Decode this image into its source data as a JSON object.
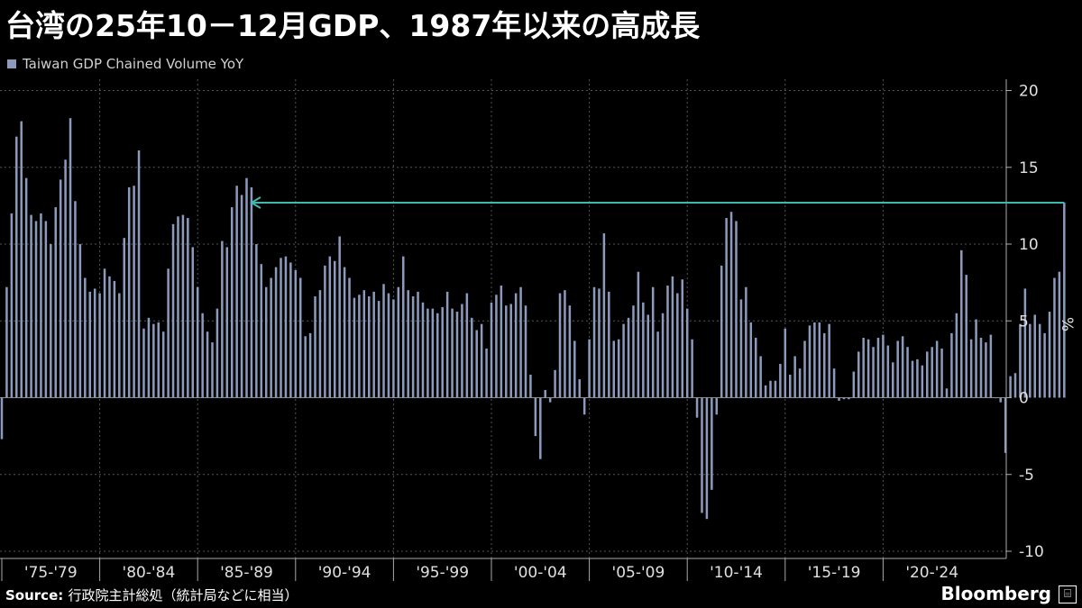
{
  "title": "台湾の25年10－12月GDP、1987年以来の高成長",
  "legend": {
    "label": "Taiwan GDP Chained Volume YoY",
    "color": "#8c9bbd"
  },
  "source": {
    "label": "Source:",
    "text": "行政院主計総処（統計局などに相当）"
  },
  "brand": {
    "name": "Bloomberg",
    "icon": "bloomberg-terminal-icon"
  },
  "colors": {
    "background": "#000000",
    "bar": "#8c9bbd",
    "arrow": "#3fb8b0",
    "grid": "#555555",
    "axis": "#aaaaaa"
  },
  "chart_data": {
    "type": "bar",
    "ylabel": "%",
    "ylim": [
      -11,
      20.5
    ],
    "yticks": [
      20,
      15,
      10,
      5,
      0,
      -5,
      -10
    ],
    "grid": true,
    "y_axis_side": "right",
    "period_labels": [
      "'75-'79",
      "'80-'84",
      "'85-'89",
      "'90-'94",
      "'95-'99",
      "'00-'04",
      "'05-'09",
      "'10-'14",
      "'15-'19",
      "'20-'24"
    ],
    "x_start": "1975 Q1",
    "x_end": "2025 Q4",
    "values": [
      -2.7,
      7.2,
      12.0,
      17.0,
      18.0,
      14.3,
      11.9,
      11.5,
      12.0,
      11.5,
      10.0,
      12.4,
      14.2,
      15.5,
      18.2,
      12.8,
      10.0,
      7.8,
      6.9,
      7.1,
      6.8,
      8.4,
      7.9,
      7.6,
      6.8,
      10.4,
      13.7,
      13.8,
      16.1,
      4.5,
      5.2,
      4.8,
      4.9,
      4.3,
      8.4,
      11.3,
      11.8,
      11.9,
      11.7,
      9.8,
      7.2,
      5.5,
      4.3,
      3.6,
      5.8,
      10.2,
      9.8,
      12.4,
      13.8,
      13.2,
      14.3,
      13.7,
      10.0,
      8.7,
      7.2,
      7.8,
      8.5,
      9.1,
      9.2,
      8.8,
      8.3,
      7.8,
      4.0,
      4.2,
      6.6,
      7.0,
      8.6,
      9.2,
      8.9,
      10.5,
      8.5,
      7.8,
      6.5,
      6.7,
      7.0,
      6.6,
      6.9,
      6.3,
      7.4,
      6.8,
      6.4,
      7.2,
      9.2,
      7.0,
      6.6,
      6.9,
      6.2,
      5.8,
      5.8,
      5.5,
      5.9,
      6.9,
      5.8,
      5.6,
      6.1,
      6.8,
      5.2,
      4.4,
      4.8,
      3.2,
      6.2,
      6.7,
      7.3,
      6.0,
      6.1,
      6.8,
      7.2,
      6.0,
      1.5,
      -2.5,
      -4.0,
      0.5,
      -0.3,
      1.8,
      6.8,
      7.0,
      6.0,
      3.7,
      1.2,
      -1.1,
      3.8,
      7.2,
      7.1,
      10.7,
      6.9,
      3.7,
      3.8,
      4.8,
      5.2,
      6.0,
      8.2,
      6.2,
      5.4,
      7.2,
      4.3,
      5.5,
      7.3,
      7.9,
      6.8,
      7.7,
      5.8,
      3.8,
      -1.3,
      -7.5,
      -7.9,
      -6.0,
      -1.1,
      8.6,
      11.7,
      12.1,
      11.5,
      6.4,
      7.2,
      4.9,
      3.9,
      2.7,
      0.8,
      1.1,
      1.1,
      2.2,
      4.5,
      1.5,
      2.7,
      1.9,
      3.7,
      4.7,
      4.9,
      4.9,
      4.2,
      4.8,
      1.9,
      -0.2,
      -0.1,
      -0.1,
      1.7,
      3.0,
      3.9,
      3.8,
      3.3,
      3.9,
      4.1,
      3.4,
      2.3,
      3.7,
      4.0,
      3.3,
      2.4,
      2.5,
      2.1,
      3.0,
      3.3,
      3.7,
      3.2,
      0.6,
      4.2,
      5.5,
      9.6,
      8.0,
      3.8,
      5.1,
      3.9,
      3.6,
      4.1,
      0.0,
      -0.3,
      -3.6,
      1.4,
      1.6,
      4.8,
      7.1,
      4.8,
      5.4,
      4.8,
      4.2,
      5.6,
      7.8,
      8.2,
      12.7
    ],
    "annotation": {
      "type": "arrow",
      "from_value": 12.7,
      "to": "1987",
      "label": ""
    }
  }
}
